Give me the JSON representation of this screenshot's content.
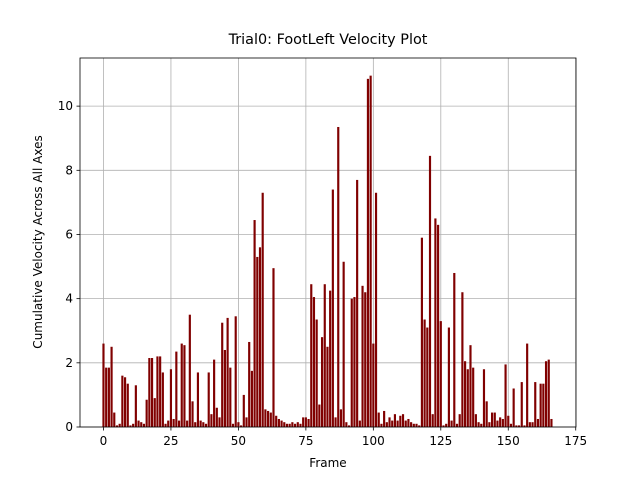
{
  "chart_data": {
    "type": "bar",
    "title": "Trial0: FootLeft Velocity Plot",
    "xlabel": "Frame",
    "ylabel": "Cumulative Velocity Across All Axes",
    "color": "#800000",
    "grid": true,
    "xlim": [
      -8.7,
      175.1
    ],
    "ylim": [
      0,
      11.5
    ],
    "xticks": [
      0,
      25,
      50,
      75,
      100,
      125,
      150,
      175
    ],
    "yticks": [
      0,
      2,
      4,
      6,
      8,
      10
    ],
    "x": [
      0,
      1,
      2,
      3,
      4,
      5,
      6,
      7,
      8,
      9,
      10,
      11,
      12,
      13,
      14,
      15,
      16,
      17,
      18,
      19,
      20,
      21,
      22,
      23,
      24,
      25,
      26,
      27,
      28,
      29,
      30,
      31,
      32,
      33,
      34,
      35,
      36,
      37,
      38,
      39,
      40,
      41,
      42,
      43,
      44,
      45,
      46,
      47,
      48,
      49,
      50,
      51,
      52,
      53,
      54,
      55,
      56,
      57,
      58,
      59,
      60,
      61,
      62,
      63,
      64,
      65,
      66,
      67,
      68,
      69,
      70,
      71,
      72,
      73,
      74,
      75,
      76,
      77,
      78,
      79,
      80,
      81,
      82,
      83,
      84,
      85,
      86,
      87,
      88,
      89,
      90,
      91,
      92,
      93,
      94,
      95,
      96,
      97,
      98,
      99,
      100,
      101,
      102,
      103,
      104,
      105,
      106,
      107,
      108,
      109,
      110,
      111,
      112,
      113,
      114,
      115,
      116,
      117,
      118,
      119,
      120,
      121,
      122,
      123,
      124,
      125,
      126,
      127,
      128,
      129,
      130,
      131,
      132,
      133,
      134,
      135,
      136,
      137,
      138,
      139,
      140,
      141,
      142,
      143,
      144,
      145,
      146,
      147,
      148,
      149,
      150,
      151,
      152,
      153,
      154,
      155,
      156,
      157,
      158,
      159,
      160,
      161,
      162,
      163,
      164,
      165,
      166
    ],
    "values": [
      2.6,
      1.85,
      1.85,
      2.5,
      0.45,
      0.05,
      0.1,
      1.6,
      1.55,
      1.35,
      0.05,
      0.1,
      1.3,
      0.2,
      0.15,
      0.1,
      0.85,
      2.15,
      2.15,
      0.9,
      2.2,
      2.2,
      1.7,
      0.1,
      0.2,
      1.8,
      0.25,
      2.35,
      0.2,
      2.6,
      2.55,
      0.2,
      3.5,
      0.8,
      0.15,
      1.7,
      0.2,
      0.15,
      0.1,
      1.7,
      0.4,
      2.1,
      0.6,
      0.3,
      3.25,
      2.4,
      3.4,
      1.85,
      0.1,
      3.45,
      0.15,
      0.05,
      1.0,
      0.3,
      2.65,
      1.75,
      6.45,
      5.3,
      5.6,
      7.3,
      0.55,
      0.5,
      0.45,
      4.95,
      0.35,
      0.25,
      0.2,
      0.15,
      0.1,
      0.1,
      0.15,
      0.1,
      0.15,
      0.1,
      0.3,
      0.3,
      0.25,
      4.45,
      4.05,
      3.35,
      0.7,
      2.8,
      4.45,
      2.5,
      4.25,
      7.4,
      0.3,
      9.35,
      0.55,
      5.15,
      0.15,
      0.05,
      4.0,
      4.05,
      7.7,
      0.2,
      4.4,
      4.2,
      10.85,
      10.95,
      2.6,
      7.3,
      0.45,
      0.1,
      0.5,
      0.15,
      0.3,
      0.2,
      0.4,
      0.2,
      0.35,
      0.4,
      0.2,
      0.25,
      0.15,
      0.1,
      0.1,
      0.05,
      5.9,
      3.35,
      3.1,
      8.45,
      0.4,
      6.5,
      6.3,
      3.3,
      0.05,
      0.1,
      3.1,
      0.2,
      4.8,
      0.1,
      0.4,
      4.2,
      2.05,
      1.8,
      2.55,
      1.85,
      0.4,
      0.15,
      0.1,
      1.8,
      0.8,
      0.15,
      0.45,
      0.45,
      0.2,
      0.3,
      0.25,
      1.95,
      0.35,
      0.1,
      1.2,
      0.05,
      0.05,
      1.4,
      0.05,
      2.6,
      0.15,
      0.15,
      1.4,
      0.25,
      1.35,
      1.35,
      2.05,
      2.1,
      0.25
    ]
  }
}
